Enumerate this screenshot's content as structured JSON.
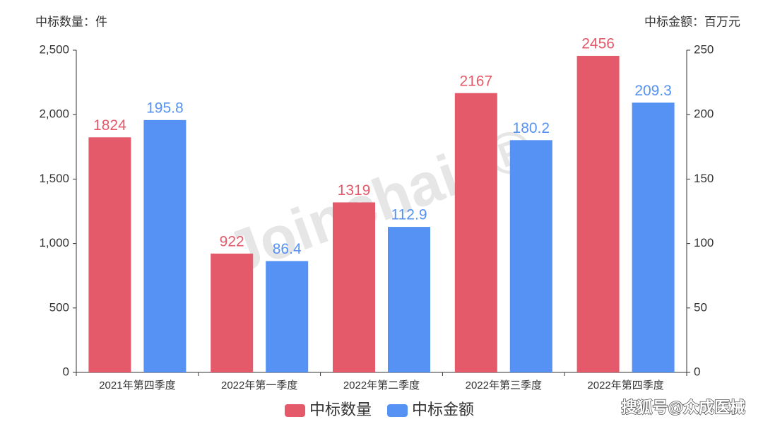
{
  "chart_data": {
    "type": "bar",
    "y_label": "中标数量：件",
    "y2_label": "中标金额：百万元",
    "watermark": "Joinchain®",
    "source": "搜狐号@众成医械",
    "categories": [
      "2021年第四季度",
      "2022年第一季度",
      "2022年第二季度",
      "2022年第三季度",
      "2022年第四季度"
    ],
    "series": [
      {
        "name": "中标数量",
        "color": "#e45a6a",
        "values": [
          1824,
          922,
          1319,
          2167,
          2456
        ]
      },
      {
        "name": "中标金额",
        "color": "#5592f3",
        "axis": "y2",
        "values": [
          195.8,
          86.4,
          112.9,
          180.2,
          209.3
        ]
      }
    ],
    "ylim": [
      0,
      2500
    ],
    "yticks": [
      0,
      500,
      {
        "value": 1000,
        "label": "1,000"
      },
      {
        "value": 1500,
        "label": "1,500"
      },
      {
        "value": 2000,
        "label": "2,000"
      },
      {
        "value": 2500,
        "label": "2,500"
      }
    ],
    "y2lim": [
      0,
      250
    ],
    "y2ticks": [
      0,
      50,
      100,
      150,
      200,
      250
    ],
    "grid": false
  }
}
